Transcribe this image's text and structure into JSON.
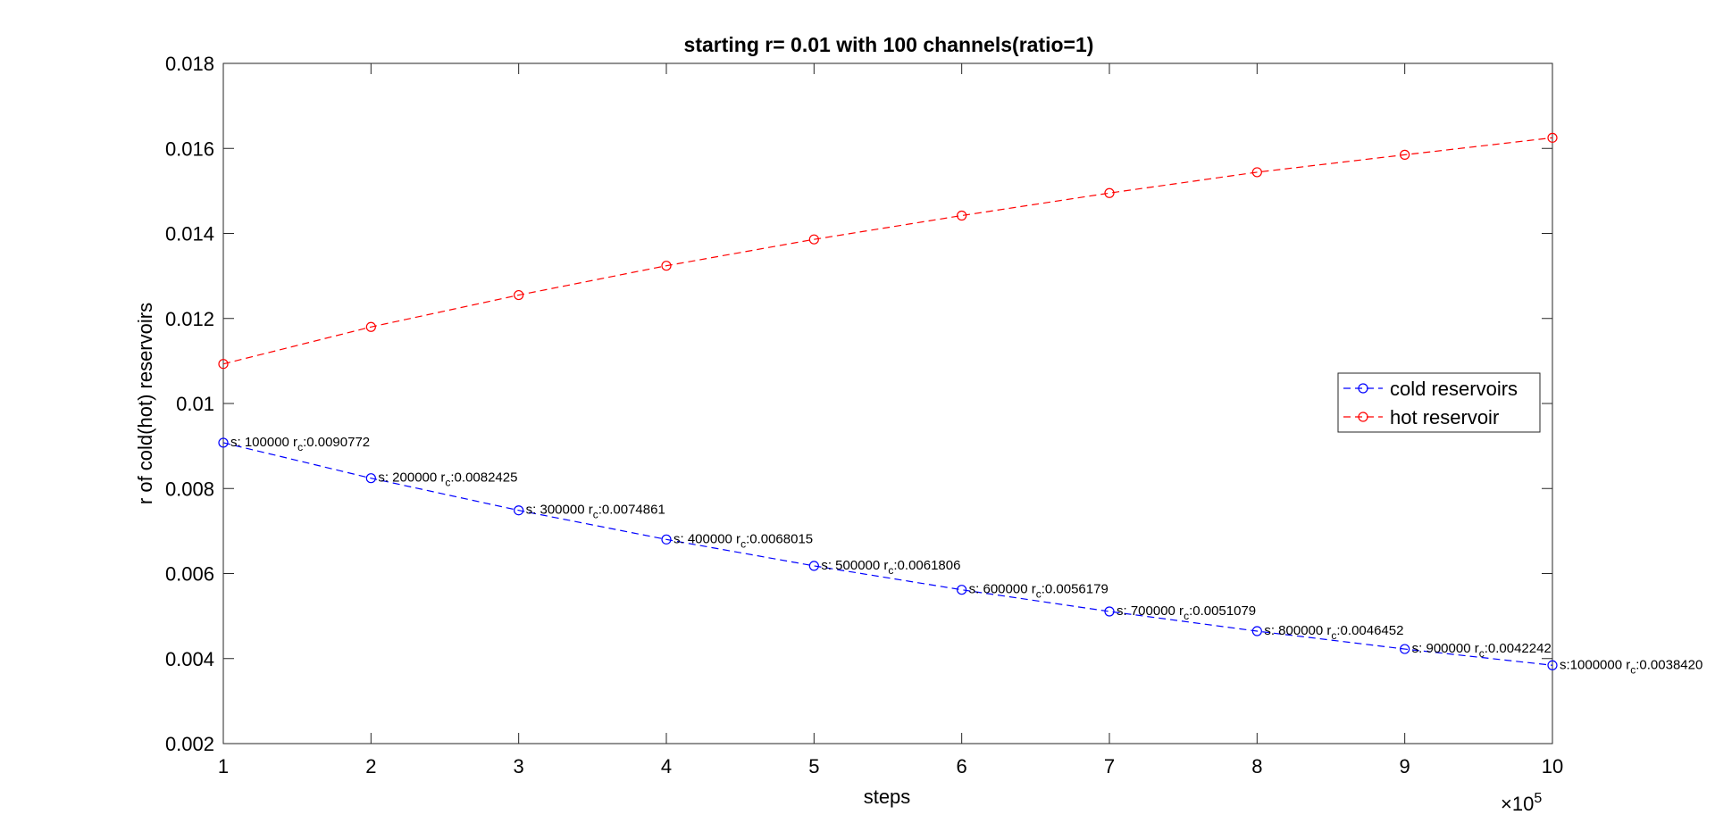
{
  "chart_data": {
    "type": "line",
    "title": "starting r= 0.01 with 100 channels(ratio=1)",
    "xlabel": "steps",
    "ylabel": "r of cold(hot) reservoirs",
    "x_exponent_label": "×10",
    "x_exponent_power": "5",
    "xlim": [
      1,
      10
    ],
    "ylim": [
      0.002,
      0.018
    ],
    "x_scale_factor": 100000,
    "x_ticks": [
      "1",
      "2",
      "3",
      "4",
      "5",
      "6",
      "7",
      "8",
      "9",
      "10"
    ],
    "y_ticks": [
      "0.002",
      "0.004",
      "0.006",
      "0.008",
      "0.01",
      "0.012",
      "0.014",
      "0.016",
      "0.018"
    ],
    "grid": false,
    "legend_position": "right",
    "x": [
      100000,
      200000,
      300000,
      400000,
      500000,
      600000,
      700000,
      800000,
      900000,
      1000000
    ],
    "series": [
      {
        "name": "cold reservoirs",
        "color": "#0000ff",
        "line_style": "dashed",
        "marker": "circle",
        "values": [
          0.0090772,
          0.0082425,
          0.0074861,
          0.0068015,
          0.0061806,
          0.0056179,
          0.0051079,
          0.0046452,
          0.0042242,
          0.003842
        ]
      },
      {
        "name": "hot reservoir",
        "color": "#ff0000",
        "line_style": "dashed",
        "marker": "circle",
        "values": [
          0.01093,
          0.0118,
          0.01255,
          0.01324,
          0.01386,
          0.01442,
          0.01495,
          0.01544,
          0.01585,
          0.01625
        ]
      }
    ],
    "annotations": [
      {
        "prefix": "s: 100000 r",
        "sub": "c",
        "value": ":0.0090772"
      },
      {
        "prefix": "s: 200000 r",
        "sub": "c",
        "value": ":0.0082425"
      },
      {
        "prefix": "s: 300000 r",
        "sub": "c",
        "value": ":0.0074861"
      },
      {
        "prefix": "s: 400000 r",
        "sub": "c",
        "value": ":0.0068015"
      },
      {
        "prefix": "s: 500000 r",
        "sub": "c",
        "value": ":0.0061806"
      },
      {
        "prefix": "s: 600000 r",
        "sub": "c",
        "value": ":0.0056179"
      },
      {
        "prefix": "s: 700000 r",
        "sub": "c",
        "value": ":0.0051079"
      },
      {
        "prefix": "s: 800000 r",
        "sub": "c",
        "value": ":0.0046452"
      },
      {
        "prefix": "s: 900000 r",
        "sub": "c",
        "value": ":0.0042242"
      },
      {
        "prefix": "s:1000000 r",
        "sub": "c",
        "value": ":0.0038420"
      }
    ]
  }
}
